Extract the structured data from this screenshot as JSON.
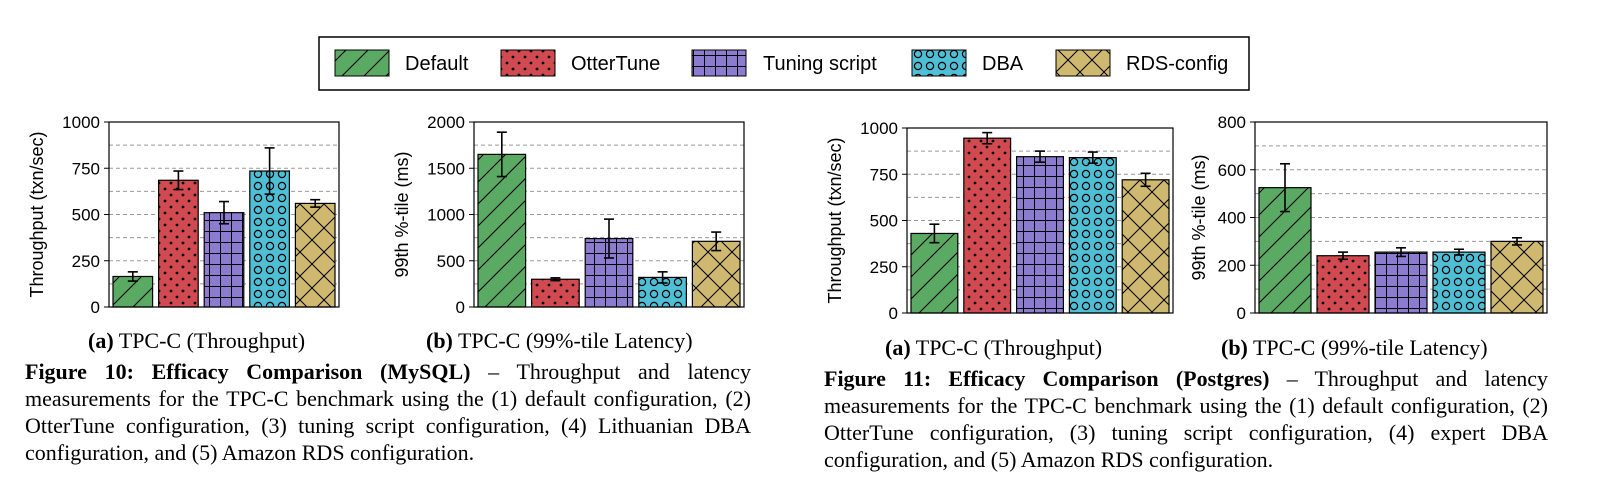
{
  "legend": [
    {
      "label": "Default",
      "color": "#5aaa64",
      "pattern": "diag"
    },
    {
      "label": "OtterTune",
      "color": "#d04a50",
      "pattern": "dots"
    },
    {
      "label": "Tuning script",
      "color": "#8c7ccf",
      "pattern": "grid"
    },
    {
      "label": "DBA",
      "color": "#4fbfd6",
      "pattern": "circles"
    },
    {
      "label": "RDS-config",
      "color": "#cfb870",
      "pattern": "xhatch"
    }
  ],
  "chart_data": [
    {
      "type": "bar",
      "ylabel": "Throughput (txn/sec)",
      "ylim": [
        0,
        1000
      ],
      "yticks": [
        0,
        250,
        500,
        750,
        1000
      ],
      "grid": true,
      "categories": [
        "Default",
        "OtterTune",
        "Tuning script",
        "DBA",
        "RDS-config"
      ],
      "values": [
        165,
        685,
        510,
        735,
        560
      ],
      "error": [
        25,
        50,
        60,
        125,
        20
      ]
    },
    {
      "type": "bar",
      "ylabel": "99th %-tile (ms)",
      "ylim": [
        0,
        2000
      ],
      "yticks": [
        0,
        500,
        1000,
        1500,
        2000
      ],
      "grid": true,
      "categories": [
        "Default",
        "OtterTune",
        "Tuning script",
        "DBA",
        "RDS-config"
      ],
      "values": [
        1650,
        300,
        740,
        320,
        710
      ],
      "error": [
        240,
        15,
        210,
        60,
        100
      ]
    },
    {
      "type": "bar",
      "ylabel": "Throughput (txn/sec)",
      "ylim": [
        0,
        1000
      ],
      "yticks": [
        0,
        250,
        500,
        750,
        1000
      ],
      "grid": true,
      "categories": [
        "Default",
        "OtterTune",
        "Tuning script",
        "DBA",
        "RDS-config"
      ],
      "values": [
        430,
        945,
        845,
        840,
        720
      ],
      "error": [
        50,
        30,
        30,
        30,
        35
      ]
    },
    {
      "type": "bar",
      "ylabel": "99th %-tile (ms)",
      "ylim": [
        0,
        800
      ],
      "yticks": [
        0,
        200,
        400,
        600,
        800
      ],
      "grid": true,
      "categories": [
        "Default",
        "OtterTune",
        "Tuning script",
        "DBA",
        "RDS-config"
      ],
      "values": [
        525,
        240,
        255,
        255,
        300
      ],
      "error": [
        100,
        15,
        18,
        12,
        15
      ]
    }
  ],
  "captions": {
    "fig10a": {
      "tag": "(a)",
      "text": " TPC-C (Throughput)"
    },
    "fig10b": {
      "tag": "(b)",
      "text": " TPC-C (99%-tile Latency)"
    },
    "fig11a": {
      "tag": "(a)",
      "text": " TPC-C (Throughput)"
    },
    "fig11b": {
      "tag": "(b)",
      "text": " TPC-C (99%-tile Latency)"
    },
    "fig10": {
      "title": "Figure 10:  Efficacy Comparison (MySQL)",
      "text": " – Throughput and latency measurements for the TPC-C benchmark using the (1) default configuration, (2) OtterTune configuration, (3) tuning script configuration, (4) Lithuanian DBA configuration, and (5) Amazon RDS configuration."
    },
    "fig11": {
      "title": "Figure 11:  Efficacy Comparison (Postgres)",
      "text": " – Throughput and latency measurements for the TPC-C benchmark using the (1) default configuration, (2) OtterTune configuration, (3) tuning script configuration, (4) expert DBA configuration, and (5) Amazon RDS configuration."
    }
  }
}
